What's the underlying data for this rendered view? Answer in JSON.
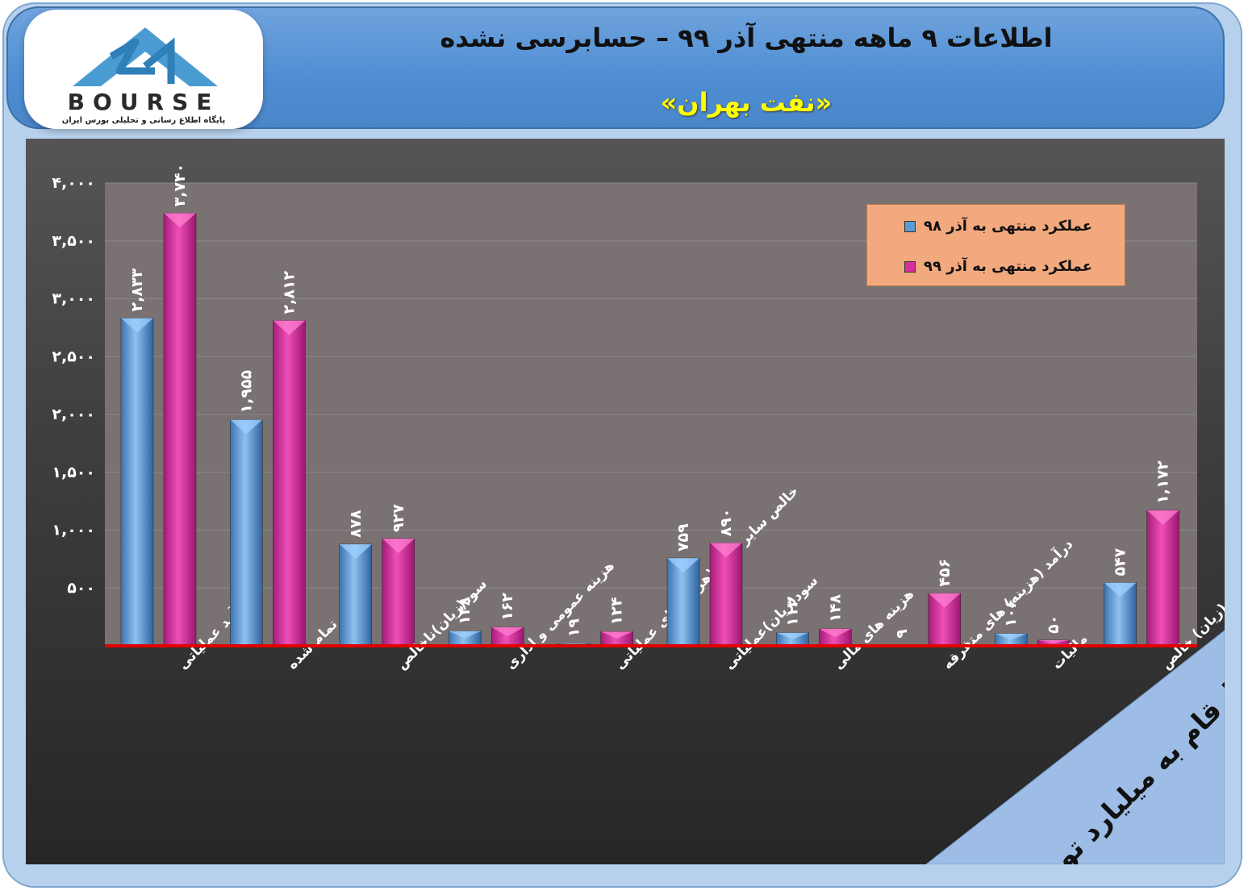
{
  "header": {
    "title": "اطلاعات ۹ ماهه منتهی آذر ۹۹ – حسابرسی نشده",
    "company": "«نفت بهران»"
  },
  "logo": {
    "brand": "BOURSE",
    "tagline": "پایگاه اطلاع رسانی و تحلیلی بورس ایران"
  },
  "unit_note": "ارقام به میلیارد تومان",
  "colors": {
    "series1": "#5b9bd5",
    "series2": "#d62f9b",
    "baseline": "#e00000",
    "plot_bg": "#7a7272"
  },
  "chart_data": {
    "type": "bar",
    "ylim": [
      0,
      4000
    ],
    "yticks": [
      500,
      1000,
      1500,
      2000,
      2500,
      3000,
      3500,
      4000
    ],
    "ytick_labels": [
      "۵۰۰",
      "۱,۰۰۰",
      "۱,۵۰۰",
      "۲,۰۰۰",
      "۲,۵۰۰",
      "۳,۰۰۰",
      "۳,۵۰۰",
      "۴,۰۰۰"
    ],
    "grid": true,
    "legend_position": "top-right",
    "categories": [
      "درآمد عملیاتی",
      "بهای تمام شده",
      "سود(زیان)ناخالص",
      "هزینه عمومی و اداری",
      "خالص سایر درامد(هزینه)های عملیاتی",
      "سود(زیان)عملیاتی",
      "هزینه های مالی",
      "درآمد (هزینه) های متفرقه",
      "مالیات",
      "سود(زیان) خالص"
    ],
    "series": [
      {
        "name": "عملکرد منتهی به آذر ۹۸",
        "values": [
          2833,
          1955,
          878,
          128,
          19,
          759,
          113,
          9,
          106,
          547
        ],
        "labels": [
          "۲,۸۳۳",
          "۱,۹۵۵",
          "۸۷۸",
          "۱۲۸",
          "۱۹",
          "۷۵۹",
          "۱۱۳",
          "۹",
          "۱۰۶",
          "۵۴۷"
        ]
      },
      {
        "name": "عملکرد منتهی به آذر ۹۹",
        "values": [
          3740,
          2812,
          927,
          162,
          124,
          890,
          148,
          456,
          50,
          1172
        ],
        "labels": [
          "۳,۷۴۰",
          "۲,۸۱۲",
          "۹۲۷",
          "۱۶۲",
          "۱۲۴",
          "۸۹۰",
          "۱۴۸",
          "۴۵۶",
          "۵۰",
          "۱,۱۷۲"
        ]
      }
    ]
  }
}
